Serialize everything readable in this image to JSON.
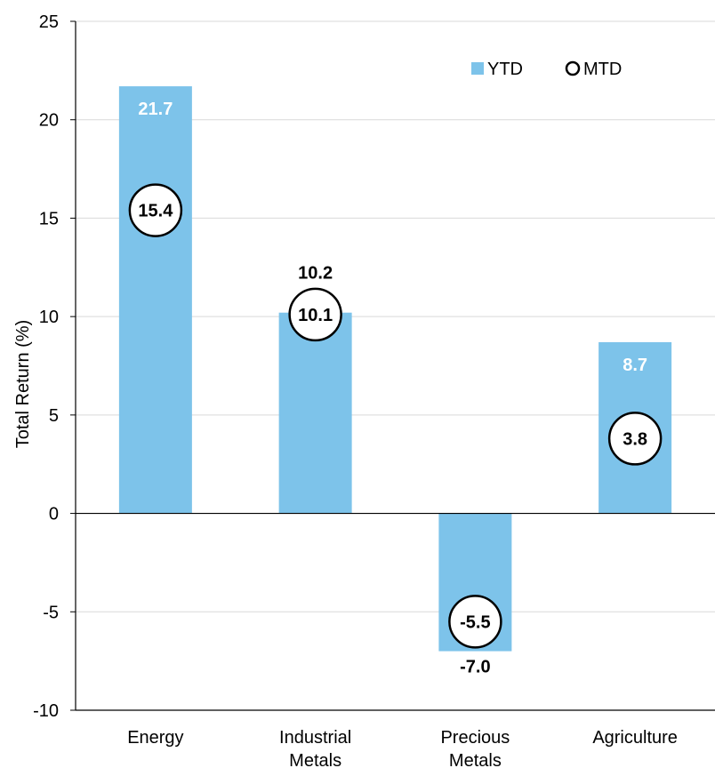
{
  "chart_data": {
    "type": "bar",
    "categories": [
      [
        "Energy"
      ],
      [
        "Industrial",
        "Metals"
      ],
      [
        "Precious",
        "Metals"
      ],
      [
        "Agriculture"
      ]
    ],
    "series": [
      {
        "name": "YTD",
        "style": "bar",
        "values": [
          21.7,
          10.2,
          -7.0,
          8.7
        ],
        "labels": [
          "21.7",
          "10.2",
          "-7.0",
          "8.7"
        ]
      },
      {
        "name": "MTD",
        "style": "circle-marker",
        "values": [
          15.4,
          10.1,
          -5.5,
          3.8
        ],
        "labels": [
          "15.4",
          "10.1",
          "-5.5",
          "3.8"
        ]
      }
    ],
    "ylabel": "Total Return (%)",
    "xlabel": "",
    "ylim": [
      -10,
      25
    ],
    "yticks": [
      "25",
      "20",
      "15",
      "10",
      "5",
      "0",
      "-5",
      "-10"
    ],
    "ytick_values": [
      25,
      20,
      15,
      10,
      5,
      0,
      -5,
      -10
    ],
    "grid": true,
    "legend": {
      "position": "top-right",
      "items": [
        "YTD",
        "MTD"
      ]
    },
    "colors": {
      "bar": "#7dc3ea",
      "grid": "#d9d9d9",
      "axis": "#000000",
      "label_inside": "#ffffff",
      "label_outside": "#000000"
    }
  }
}
